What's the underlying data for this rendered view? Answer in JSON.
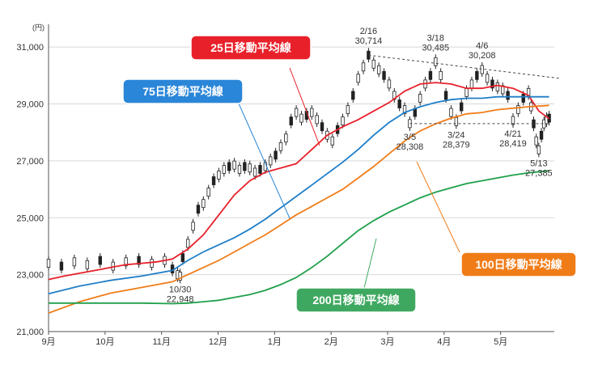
{
  "chart_data": {
    "type": "line",
    "unit_label": "(円)",
    "x_months": [
      "9月",
      "10月",
      "11月",
      "12月",
      "1月",
      "2月",
      "3月",
      "4月",
      "5月"
    ],
    "y_ticks": [
      "21,000",
      "23,000",
      "25,000",
      "27,000",
      "29,000",
      "31,000"
    ],
    "ylim": [
      21000,
      31800
    ],
    "series": [
      {
        "name": "25日移動平均線",
        "color": "#e8202a",
        "points": [
          [
            0,
            22830
          ],
          [
            6,
            22950
          ],
          [
            12,
            23050
          ],
          [
            18,
            23150
          ],
          [
            24,
            23250
          ],
          [
            30,
            23350
          ],
          [
            36,
            23400
          ],
          [
            42,
            23450
          ],
          [
            48,
            23550
          ],
          [
            54,
            23900
          ],
          [
            60,
            24400
          ],
          [
            66,
            25100
          ],
          [
            72,
            25800
          ],
          [
            78,
            26300
          ],
          [
            84,
            26600
          ],
          [
            90,
            26750
          ],
          [
            96,
            26900
          ],
          [
            102,
            27400
          ],
          [
            108,
            27900
          ],
          [
            114,
            28200
          ],
          [
            120,
            28450
          ],
          [
            126,
            28750
          ],
          [
            132,
            29050
          ],
          [
            138,
            29450
          ],
          [
            144,
            29700
          ],
          [
            150,
            29750
          ],
          [
            156,
            29700
          ],
          [
            162,
            29550
          ],
          [
            168,
            29550
          ],
          [
            174,
            29650
          ],
          [
            180,
            29550
          ],
          [
            186,
            29300
          ],
          [
            190,
            28750
          ],
          [
            194,
            28480
          ]
        ]
      },
      {
        "name": "75日移動平均線",
        "color": "#1f7ec8",
        "points": [
          [
            0,
            22330
          ],
          [
            12,
            22600
          ],
          [
            24,
            22800
          ],
          [
            36,
            22950
          ],
          [
            48,
            23150
          ],
          [
            54,
            23500
          ],
          [
            60,
            23800
          ],
          [
            66,
            24050
          ],
          [
            72,
            24300
          ],
          [
            78,
            24600
          ],
          [
            84,
            24950
          ],
          [
            90,
            25350
          ],
          [
            96,
            25750
          ],
          [
            102,
            26150
          ],
          [
            108,
            26550
          ],
          [
            114,
            26950
          ],
          [
            120,
            27400
          ],
          [
            126,
            27900
          ],
          [
            132,
            28350
          ],
          [
            138,
            28700
          ],
          [
            144,
            28900
          ],
          [
            150,
            29050
          ],
          [
            156,
            29150
          ],
          [
            162,
            29200
          ],
          [
            168,
            29200
          ],
          [
            174,
            29250
          ],
          [
            180,
            29250
          ],
          [
            186,
            29250
          ],
          [
            194,
            29250
          ]
        ]
      },
      {
        "name": "100日移動平均線",
        "color": "#f07c18",
        "points": [
          [
            0,
            21650
          ],
          [
            12,
            22050
          ],
          [
            24,
            22350
          ],
          [
            36,
            22550
          ],
          [
            48,
            22750
          ],
          [
            54,
            23000
          ],
          [
            60,
            23250
          ],
          [
            66,
            23500
          ],
          [
            72,
            23800
          ],
          [
            78,
            24100
          ],
          [
            84,
            24400
          ],
          [
            90,
            24750
          ],
          [
            96,
            25100
          ],
          [
            102,
            25400
          ],
          [
            108,
            25700
          ],
          [
            114,
            26000
          ],
          [
            120,
            26400
          ],
          [
            126,
            26800
          ],
          [
            132,
            27250
          ],
          [
            138,
            27700
          ],
          [
            144,
            28050
          ],
          [
            150,
            28300
          ],
          [
            156,
            28500
          ],
          [
            162,
            28650
          ],
          [
            168,
            28700
          ],
          [
            174,
            28800
          ],
          [
            180,
            28850
          ],
          [
            186,
            28900
          ],
          [
            194,
            28950
          ]
        ]
      },
      {
        "name": "200日移動平均線",
        "color": "#1fa04a",
        "points": [
          [
            0,
            22000
          ],
          [
            12,
            22000
          ],
          [
            24,
            22000
          ],
          [
            36,
            22000
          ],
          [
            48,
            21980
          ],
          [
            54,
            22000
          ],
          [
            60,
            22050
          ],
          [
            66,
            22100
          ],
          [
            72,
            22200
          ],
          [
            78,
            22300
          ],
          [
            84,
            22450
          ],
          [
            90,
            22650
          ],
          [
            96,
            22900
          ],
          [
            102,
            23250
          ],
          [
            108,
            23650
          ],
          [
            114,
            24100
          ],
          [
            120,
            24550
          ],
          [
            126,
            24900
          ],
          [
            132,
            25200
          ],
          [
            138,
            25450
          ],
          [
            144,
            25700
          ],
          [
            150,
            25900
          ],
          [
            156,
            26050
          ],
          [
            162,
            26200
          ],
          [
            168,
            26300
          ],
          [
            174,
            26400
          ],
          [
            180,
            26500
          ],
          [
            186,
            26580
          ],
          [
            194,
            26650
          ]
        ]
      }
    ],
    "candles": [
      [
        0,
        23400
      ],
      [
        5,
        23300
      ],
      [
        10,
        23450
      ],
      [
        15,
        23350
      ],
      [
        20,
        23500
      ],
      [
        25,
        23300
      ],
      [
        30,
        23450
      ],
      [
        35,
        23500
      ],
      [
        40,
        23400
      ],
      [
        45,
        23500
      ],
      [
        48,
        23200
      ],
      [
        50,
        23000
      ],
      [
        51,
        22948
      ],
      [
        52,
        23600
      ],
      [
        54,
        24100
      ],
      [
        56,
        24700
      ],
      [
        58,
        25300
      ],
      [
        60,
        25500
      ],
      [
        62,
        25900
      ],
      [
        64,
        26300
      ],
      [
        66,
        26500
      ],
      [
        68,
        26700
      ],
      [
        70,
        26800
      ],
      [
        72,
        26850
      ],
      [
        74,
        26700
      ],
      [
        76,
        26800
      ],
      [
        78,
        26750
      ],
      [
        80,
        26600
      ],
      [
        82,
        26700
      ],
      [
        84,
        26800
      ],
      [
        86,
        27000
      ],
      [
        88,
        27200
      ],
      [
        90,
        27500
      ],
      [
        92,
        27800
      ],
      [
        94,
        28400
      ],
      [
        96,
        28700
      ],
      [
        98,
        28500
      ],
      [
        100,
        28600
      ],
      [
        102,
        28700
      ],
      [
        104,
        28450
      ],
      [
        106,
        28200
      ],
      [
        108,
        27900
      ],
      [
        110,
        27700
      ],
      [
        112,
        28100
      ],
      [
        114,
        28400
      ],
      [
        116,
        28800
      ],
      [
        118,
        29300
      ],
      [
        120,
        29900
      ],
      [
        122,
        30300
      ],
      [
        124,
        30714
      ],
      [
        126,
        30400
      ],
      [
        128,
        30200
      ],
      [
        130,
        30000
      ],
      [
        132,
        29700
      ],
      [
        134,
        29300
      ],
      [
        136,
        29000
      ],
      [
        138,
        28800
      ],
      [
        140,
        28308
      ],
      [
        142,
        28700
      ],
      [
        144,
        29200
      ],
      [
        146,
        29700
      ],
      [
        148,
        30000
      ],
      [
        150,
        30485
      ],
      [
        152,
        30000
      ],
      [
        154,
        29300
      ],
      [
        156,
        28700
      ],
      [
        158,
        28379
      ],
      [
        160,
        28900
      ],
      [
        162,
        29400
      ],
      [
        164,
        29700
      ],
      [
        166,
        30000
      ],
      [
        168,
        30208
      ],
      [
        170,
        29900
      ],
      [
        172,
        29700
      ],
      [
        174,
        29600
      ],
      [
        176,
        29500
      ],
      [
        178,
        29300
      ],
      [
        180,
        28419
      ],
      [
        182,
        28800
      ],
      [
        184,
        29200
      ],
      [
        186,
        29400
      ],
      [
        187,
        28900
      ],
      [
        188,
        28300
      ],
      [
        189,
        27700
      ],
      [
        190,
        27385
      ],
      [
        191,
        27900
      ],
      [
        192,
        28300
      ],
      [
        193,
        28450
      ],
      [
        194,
        28500
      ]
    ],
    "annotations": [
      {
        "date": "2/16",
        "value": "30,714",
        "t": 124,
        "y": 30714,
        "pos": "above"
      },
      {
        "date": "3/18",
        "value": "30,485",
        "t": 150,
        "y": 30485,
        "pos": "above"
      },
      {
        "date": "4/6",
        "value": "30,208",
        "t": 168,
        "y": 30208,
        "pos": "above"
      },
      {
        "date": "3/5",
        "value": "28,308",
        "t": 140,
        "y": 28308,
        "pos": "below"
      },
      {
        "date": "3/24",
        "value": "28,379",
        "t": 158,
        "y": 28379,
        "pos": "below"
      },
      {
        "date": "4/21",
        "value": "28,419",
        "t": 180,
        "y": 28419,
        "pos": "below"
      },
      {
        "date": "5/13",
        "value": "27,385",
        "t": 190,
        "y": 27385,
        "pos": "below"
      },
      {
        "date": "10/30",
        "value": "22,948",
        "t": 51,
        "y": 22948,
        "pos": "below"
      }
    ],
    "trendlines": [
      {
        "from": [
          124,
          30714
        ],
        "to": [
          198,
          29900
        ]
      },
      {
        "from": [
          140,
          28308
        ],
        "to": [
          194,
          28308
        ]
      }
    ],
    "callouts": [
      {
        "label": "25日移動平均線",
        "color": "#e8202a"
      },
      {
        "label": "75日移動平均線",
        "color": "#2a86d8"
      },
      {
        "label": "100日移動平均線",
        "color": "#f07c18"
      },
      {
        "label": "200日移動平均線",
        "color": "#3fa860"
      }
    ]
  }
}
